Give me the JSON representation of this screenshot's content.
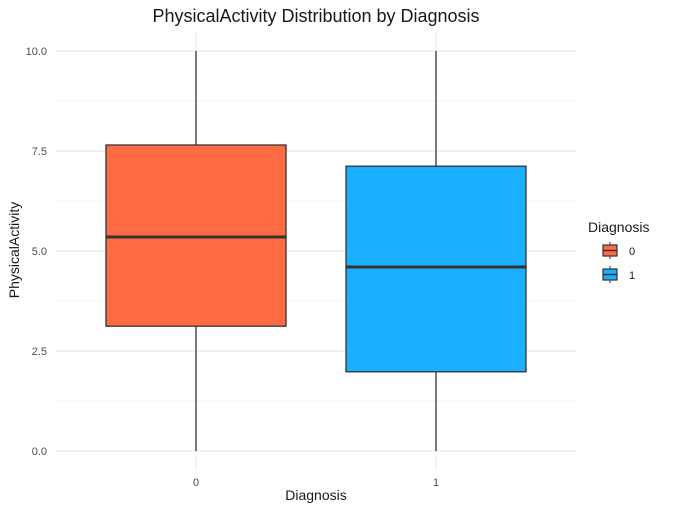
{
  "chart_data": {
    "type": "box",
    "title": "PhysicalActivity Distribution by Diagnosis",
    "xlabel": "Diagnosis",
    "ylabel": "PhysicalActivity",
    "ylim": [
      0,
      10
    ],
    "y_ticks": [
      "0.0",
      "2.5",
      "5.0",
      "7.5",
      "10.0"
    ],
    "y_tick_values": [
      0,
      2.5,
      5,
      7.5,
      10
    ],
    "grid": true,
    "legend": {
      "title": "Diagnosis",
      "position": "right"
    },
    "categories": [
      "0",
      "1"
    ],
    "boxes": [
      {
        "category": "0",
        "min": 0.0,
        "q1": 3.12,
        "median": 5.35,
        "q3": 7.65,
        "max": 10.0,
        "color": "#FF6B42"
      },
      {
        "category": "1",
        "min": 0.0,
        "q1": 1.98,
        "median": 4.6,
        "q3": 7.12,
        "max": 10.0,
        "color": "#1AB0FF"
      }
    ]
  }
}
